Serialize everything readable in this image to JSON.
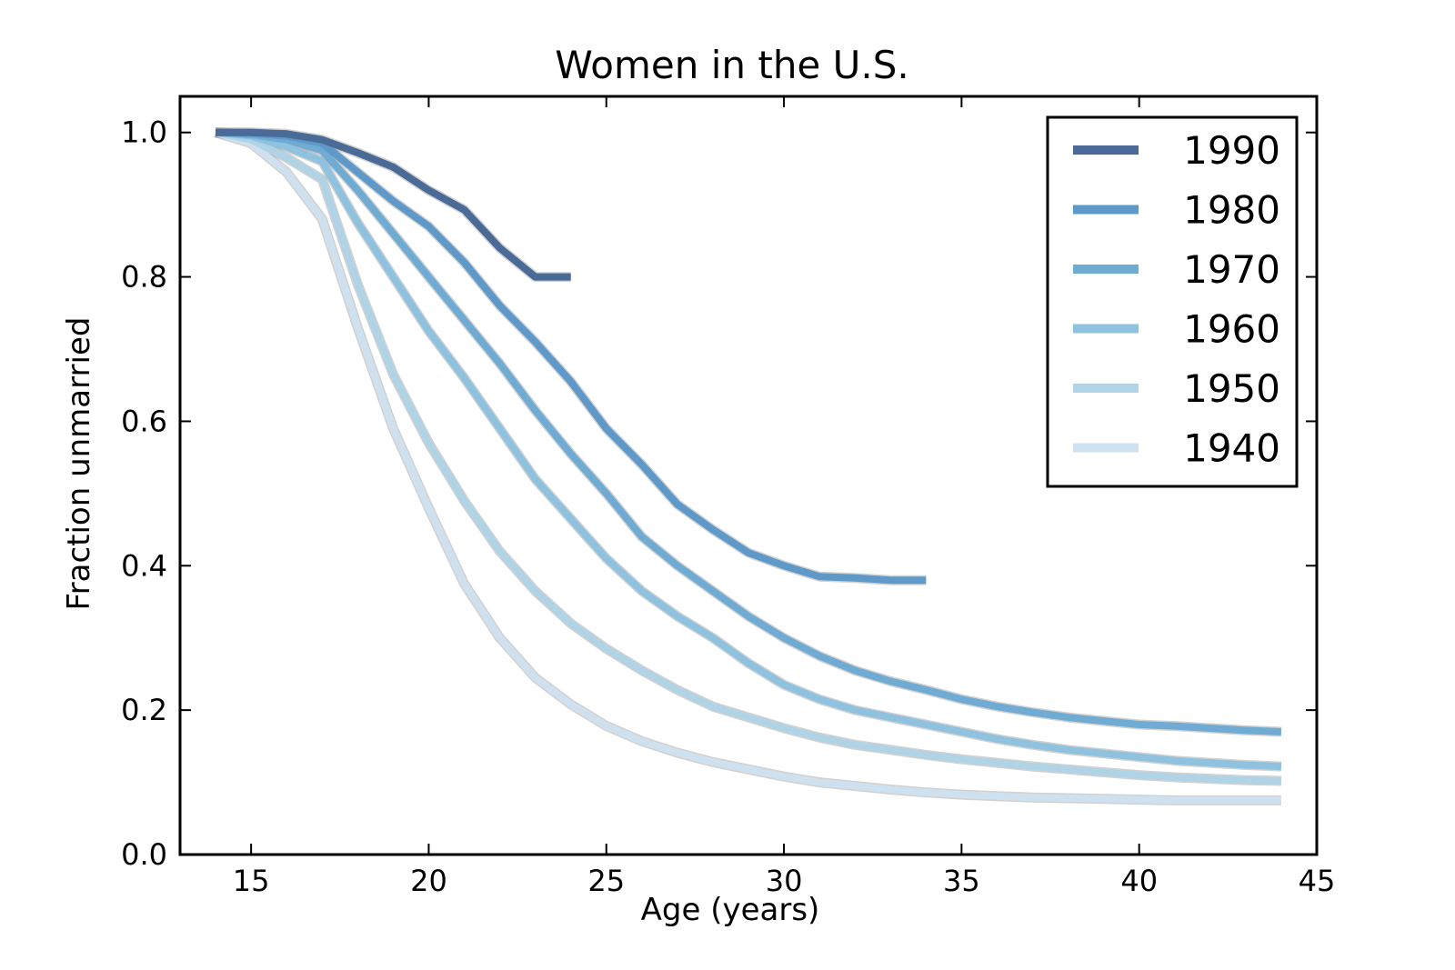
{
  "chart_data": {
    "type": "line",
    "title": "Women in the U.S.",
    "xlabel": "Age (years)",
    "ylabel": "Fraction unmarried",
    "xlim": [
      13,
      45
    ],
    "ylim": [
      0.0,
      1.05
    ],
    "xticks": [
      15,
      20,
      25,
      30,
      35,
      40,
      45
    ],
    "yticks": [
      0.0,
      0.2,
      0.4,
      0.6,
      0.8,
      1.0
    ],
    "ytick_labels": [
      "0.0",
      "0.2",
      "0.4",
      "0.6",
      "0.8",
      "1.0"
    ],
    "grid": false,
    "legend_position": "top-right",
    "confidence_band_color": "#999999",
    "series": [
      {
        "name": "1990",
        "color": "#4a6a97",
        "x": [
          14,
          15,
          16,
          17,
          18,
          19,
          20,
          21,
          22,
          23,
          24
        ],
        "y": [
          1.0,
          1.0,
          0.998,
          0.99,
          0.972,
          0.952,
          0.92,
          0.893,
          0.84,
          0.8,
          0.8
        ]
      },
      {
        "name": "1980",
        "color": "#5f99c9",
        "x": [
          14,
          15,
          16,
          17,
          18,
          19,
          20,
          21,
          22,
          23,
          24,
          25,
          26,
          27,
          28,
          29,
          30,
          31,
          32,
          33,
          34
        ],
        "y": [
          1.0,
          0.999,
          0.995,
          0.985,
          0.945,
          0.905,
          0.87,
          0.82,
          0.76,
          0.71,
          0.655,
          0.59,
          0.54,
          0.485,
          0.45,
          0.418,
          0.4,
          0.385,
          0.383,
          0.38,
          0.38
        ]
      },
      {
        "name": "1970",
        "color": "#6fabd2",
        "x": [
          14,
          15,
          16,
          17,
          18,
          19,
          20,
          21,
          22,
          23,
          24,
          25,
          26,
          27,
          28,
          29,
          30,
          31,
          32,
          33,
          34,
          35,
          36,
          37,
          38,
          39,
          40,
          41,
          42,
          43,
          44
        ],
        "y": [
          1.0,
          0.997,
          0.99,
          0.975,
          0.92,
          0.86,
          0.8,
          0.74,
          0.68,
          0.615,
          0.555,
          0.5,
          0.44,
          0.4,
          0.365,
          0.33,
          0.3,
          0.275,
          0.255,
          0.24,
          0.228,
          0.215,
          0.205,
          0.197,
          0.19,
          0.185,
          0.18,
          0.178,
          0.175,
          0.172,
          0.17
        ]
      },
      {
        "name": "1960",
        "color": "#8ec2df",
        "x": [
          14,
          15,
          16,
          17,
          18,
          19,
          20,
          21,
          22,
          23,
          24,
          25,
          26,
          27,
          28,
          29,
          30,
          31,
          32,
          33,
          34,
          35,
          36,
          37,
          38,
          39,
          40,
          41,
          42,
          43,
          44
        ],
        "y": [
          1.0,
          0.995,
          0.98,
          0.96,
          0.875,
          0.8,
          0.725,
          0.66,
          0.59,
          0.52,
          0.465,
          0.41,
          0.365,
          0.33,
          0.3,
          0.265,
          0.235,
          0.215,
          0.2,
          0.19,
          0.18,
          0.17,
          0.16,
          0.152,
          0.145,
          0.14,
          0.135,
          0.13,
          0.127,
          0.124,
          0.122
        ]
      },
      {
        "name": "1950",
        "color": "#b0d3e6",
        "x": [
          14,
          15,
          16,
          17,
          18,
          19,
          20,
          21,
          22,
          23,
          24,
          25,
          26,
          27,
          28,
          29,
          30,
          31,
          32,
          33,
          34,
          35,
          36,
          37,
          38,
          39,
          40,
          41,
          42,
          43,
          44
        ],
        "y": [
          1.0,
          0.99,
          0.965,
          0.935,
          0.79,
          0.665,
          0.57,
          0.49,
          0.42,
          0.365,
          0.32,
          0.285,
          0.255,
          0.228,
          0.205,
          0.19,
          0.175,
          0.162,
          0.152,
          0.145,
          0.138,
          0.132,
          0.127,
          0.122,
          0.118,
          0.114,
          0.11,
          0.107,
          0.105,
          0.103,
          0.102
        ]
      },
      {
        "name": "1940",
        "color": "#cfe1ef",
        "x": [
          14,
          15,
          16,
          17,
          18,
          19,
          20,
          21,
          22,
          23,
          24,
          25,
          26,
          27,
          28,
          29,
          30,
          31,
          32,
          33,
          34,
          35,
          36,
          37,
          38,
          39,
          40,
          41,
          42,
          43,
          44
        ],
        "y": [
          1.0,
          0.985,
          0.945,
          0.88,
          0.73,
          0.59,
          0.48,
          0.375,
          0.3,
          0.245,
          0.208,
          0.178,
          0.157,
          0.141,
          0.128,
          0.118,
          0.108,
          0.1,
          0.095,
          0.09,
          0.086,
          0.083,
          0.081,
          0.079,
          0.078,
          0.077,
          0.076,
          0.075,
          0.075,
          0.075,
          0.075
        ]
      }
    ]
  }
}
